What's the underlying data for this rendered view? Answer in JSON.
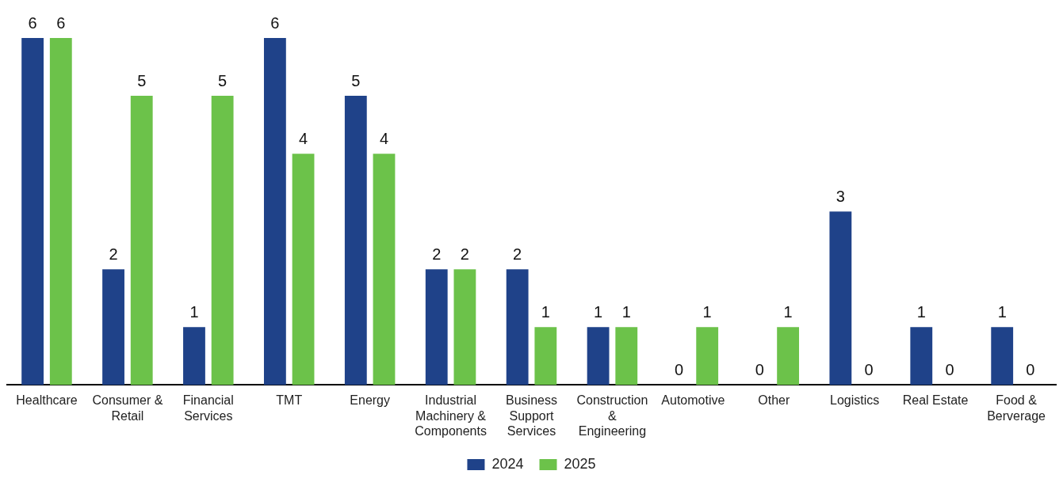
{
  "chart_data": {
    "type": "bar",
    "categories": [
      "Healthcare",
      "Consumer & Retail",
      "Financial Services",
      "TMT",
      "Energy",
      "Industrial Machinery & Components",
      "Business Support Services",
      "Construction & Engineering",
      "Automotive",
      "Other",
      "Logistics",
      "Real Estate",
      "Food & Berverage"
    ],
    "series": [
      {
        "name": "2024",
        "color": "#1f4289",
        "values": [
          6,
          2,
          1,
          6,
          5,
          2,
          2,
          1,
          0,
          0,
          3,
          1,
          1
        ]
      },
      {
        "name": "2025",
        "color": "#6cc24a",
        "values": [
          6,
          5,
          5,
          4,
          4,
          2,
          1,
          1,
          1,
          1,
          0,
          0,
          0
        ]
      }
    ],
    "data_labels": true,
    "legend": "bottom"
  }
}
